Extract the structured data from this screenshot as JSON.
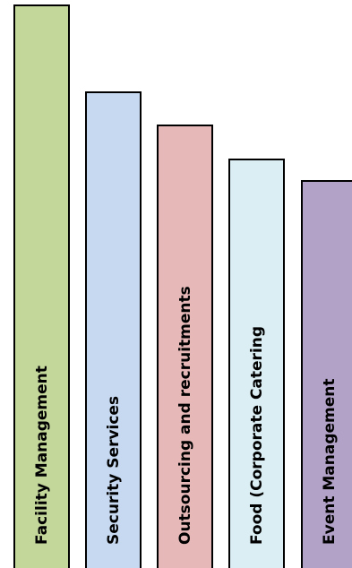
{
  "bars": [
    {
      "label": "Facility  Management",
      "color": "#c4d79b"
    },
    {
      "label": "Security Services",
      "color": "#c6d9f0"
    },
    {
      "label": "Outsourcing and recruitments",
      "color": "#e6b9b8"
    },
    {
      "label": "Food (Corporate Catering",
      "color": "#daeef3"
    },
    {
      "label": "Event Management",
      "color": "#b3a2c7"
    }
  ]
}
